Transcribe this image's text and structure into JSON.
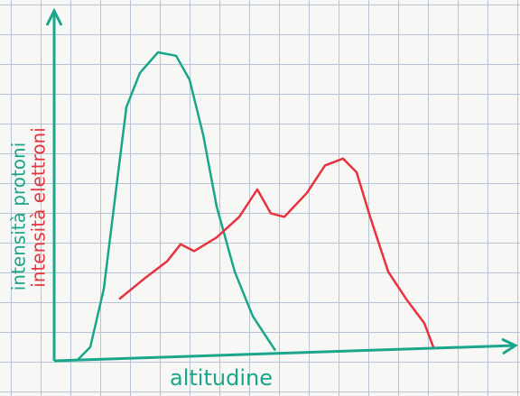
{
  "chart_data": {
    "type": "line",
    "xlabel": "altitudine",
    "xlim": [
      0,
      100
    ],
    "ylim": [
      0,
      100
    ],
    "series": [
      {
        "name": "intensità protoni",
        "color": "#1aa68a",
        "x": [
          5,
          8,
          11,
          14,
          16,
          19,
          23,
          27,
          30,
          33,
          36,
          40,
          44,
          49
        ],
        "values": [
          0,
          4,
          21,
          53,
          74,
          84,
          90,
          89,
          82,
          66,
          45,
          26,
          13,
          3
        ]
      },
      {
        "name": "intensità elettroni",
        "color": "#e8333f",
        "x": [
          14.4,
          20,
          25,
          28,
          31,
          36,
          41,
          45,
          48,
          51,
          56,
          60,
          64,
          67,
          70,
          74,
          78,
          82,
          84
        ],
        "values": [
          18,
          24,
          29,
          34,
          32,
          36,
          42,
          50,
          43,
          42,
          49,
          57,
          59,
          55,
          42,
          26,
          18,
          11,
          4
        ]
      }
    ]
  }
}
